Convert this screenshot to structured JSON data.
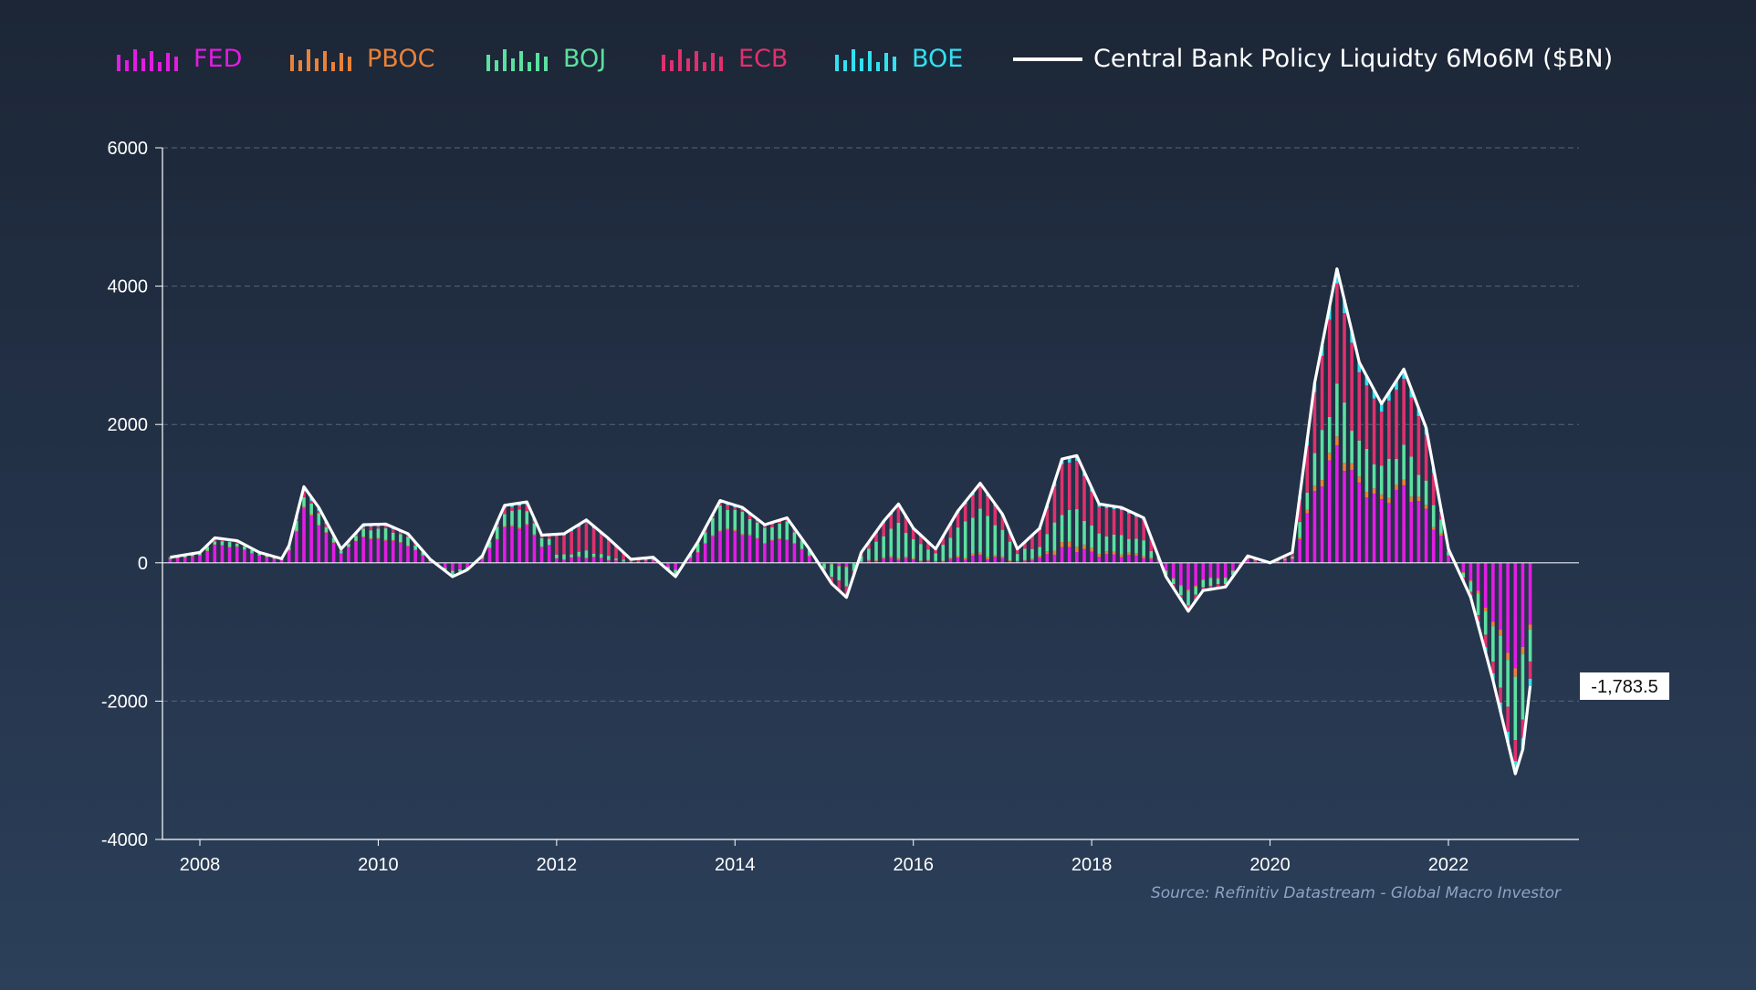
{
  "chart_data": {
    "type": "bar",
    "title": "",
    "xlabel": "",
    "ylabel": "",
    "ylim": [
      -4000,
      6000
    ],
    "y_ticks": [
      "6000",
      "4000",
      "2000",
      "0",
      "-2000",
      "-4000"
    ],
    "x_tick_labels": [
      "2008",
      "2010",
      "2012",
      "2014",
      "2016",
      "2018",
      "2020",
      "2022"
    ],
    "grid": true,
    "legend_placement": "top",
    "stacked": true,
    "source": "Source: Refinitiv Datastream - Global Macro Investor",
    "last_value_label": "-1,783.5",
    "series_order": [
      "FED",
      "PBOC",
      "BOJ",
      "ECB",
      "BOE"
    ],
    "series_colors": {
      "FED": "#e31ce3",
      "PBOC": "#e8823a",
      "BOJ": "#5ce0a0",
      "ECB": "#e0306e",
      "BOE": "#33e0f0"
    },
    "line_series": {
      "name": "Central Bank Policy Liquidty 6Mo6M ($BN)",
      "color": "#ffffff"
    },
    "legend": [
      {
        "name": "FED",
        "color": "#e31ce3",
        "icon": "bar-icon"
      },
      {
        "name": "PBOC",
        "color": "#e8823a",
        "icon": "bar-icon"
      },
      {
        "name": "BOJ",
        "color": "#5ce0a0",
        "icon": "bar-icon"
      },
      {
        "name": "ECB",
        "color": "#e0306e",
        "icon": "bar-icon"
      },
      {
        "name": "BOE",
        "color": "#33e0f0",
        "icon": "bar-icon"
      },
      {
        "name": "Central Bank Policy Liquidty 6Mo6M ($BN)",
        "color": "#ffffff",
        "icon": "line-icon"
      }
    ],
    "x_start": "2007-09",
    "x_end": "2022-12",
    "total_keypoints": [
      [
        "2007-09",
        80
      ],
      [
        "2008-01",
        150
      ],
      [
        "2008-03",
        360
      ],
      [
        "2008-06",
        320
      ],
      [
        "2008-09",
        150
      ],
      [
        "2008-12",
        60
      ],
      [
        "2009-01",
        250
      ],
      [
        "2009-03",
        1100
      ],
      [
        "2009-05",
        800
      ],
      [
        "2009-08",
        200
      ],
      [
        "2009-11",
        550
      ],
      [
        "2010-02",
        560
      ],
      [
        "2010-05",
        420
      ],
      [
        "2010-08",
        50
      ],
      [
        "2010-11",
        -200
      ],
      [
        "2011-01",
        -100
      ],
      [
        "2011-03",
        100
      ],
      [
        "2011-06",
        830
      ],
      [
        "2011-09",
        880
      ],
      [
        "2011-11",
        400
      ],
      [
        "2012-02",
        420
      ],
      [
        "2012-05",
        620
      ],
      [
        "2012-08",
        350
      ],
      [
        "2012-11",
        50
      ],
      [
        "2013-02",
        80
      ],
      [
        "2013-05",
        -200
      ],
      [
        "2013-08",
        300
      ],
      [
        "2013-11",
        900
      ],
      [
        "2014-02",
        800
      ],
      [
        "2014-05",
        550
      ],
      [
        "2014-08",
        650
      ],
      [
        "2014-11",
        200
      ],
      [
        "2015-02",
        -300
      ],
      [
        "2015-04",
        -500
      ],
      [
        "2015-06",
        150
      ],
      [
        "2015-09",
        600
      ],
      [
        "2015-11",
        850
      ],
      [
        "2016-01",
        500
      ],
      [
        "2016-04",
        200
      ],
      [
        "2016-07",
        750
      ],
      [
        "2016-10",
        1150
      ],
      [
        "2017-01",
        700
      ],
      [
        "2017-03",
        200
      ],
      [
        "2017-06",
        500
      ],
      [
        "2017-09",
        1500
      ],
      [
        "2017-11",
        1550
      ],
      [
        "2018-02",
        850
      ],
      [
        "2018-05",
        800
      ],
      [
        "2018-08",
        650
      ],
      [
        "2018-11",
        -200
      ],
      [
        "2019-02",
        -700
      ],
      [
        "2019-04",
        -400
      ],
      [
        "2019-07",
        -350
      ],
      [
        "2019-10",
        100
      ],
      [
        "2020-01",
        0
      ],
      [
        "2020-04",
        150
      ],
      [
        "2020-07",
        2600
      ],
      [
        "2020-10",
        4250
      ],
      [
        "2021-01",
        2900
      ],
      [
        "2021-04",
        2300
      ],
      [
        "2021-07",
        2800
      ],
      [
        "2021-10",
        1950
      ],
      [
        "2022-01",
        200
      ],
      [
        "2022-04",
        -500
      ],
      [
        "2022-07",
        -1700
      ],
      [
        "2022-10",
        -3050
      ],
      [
        "2022-11",
        -2700
      ],
      [
        "2022-12",
        -1783.5
      ]
    ]
  }
}
